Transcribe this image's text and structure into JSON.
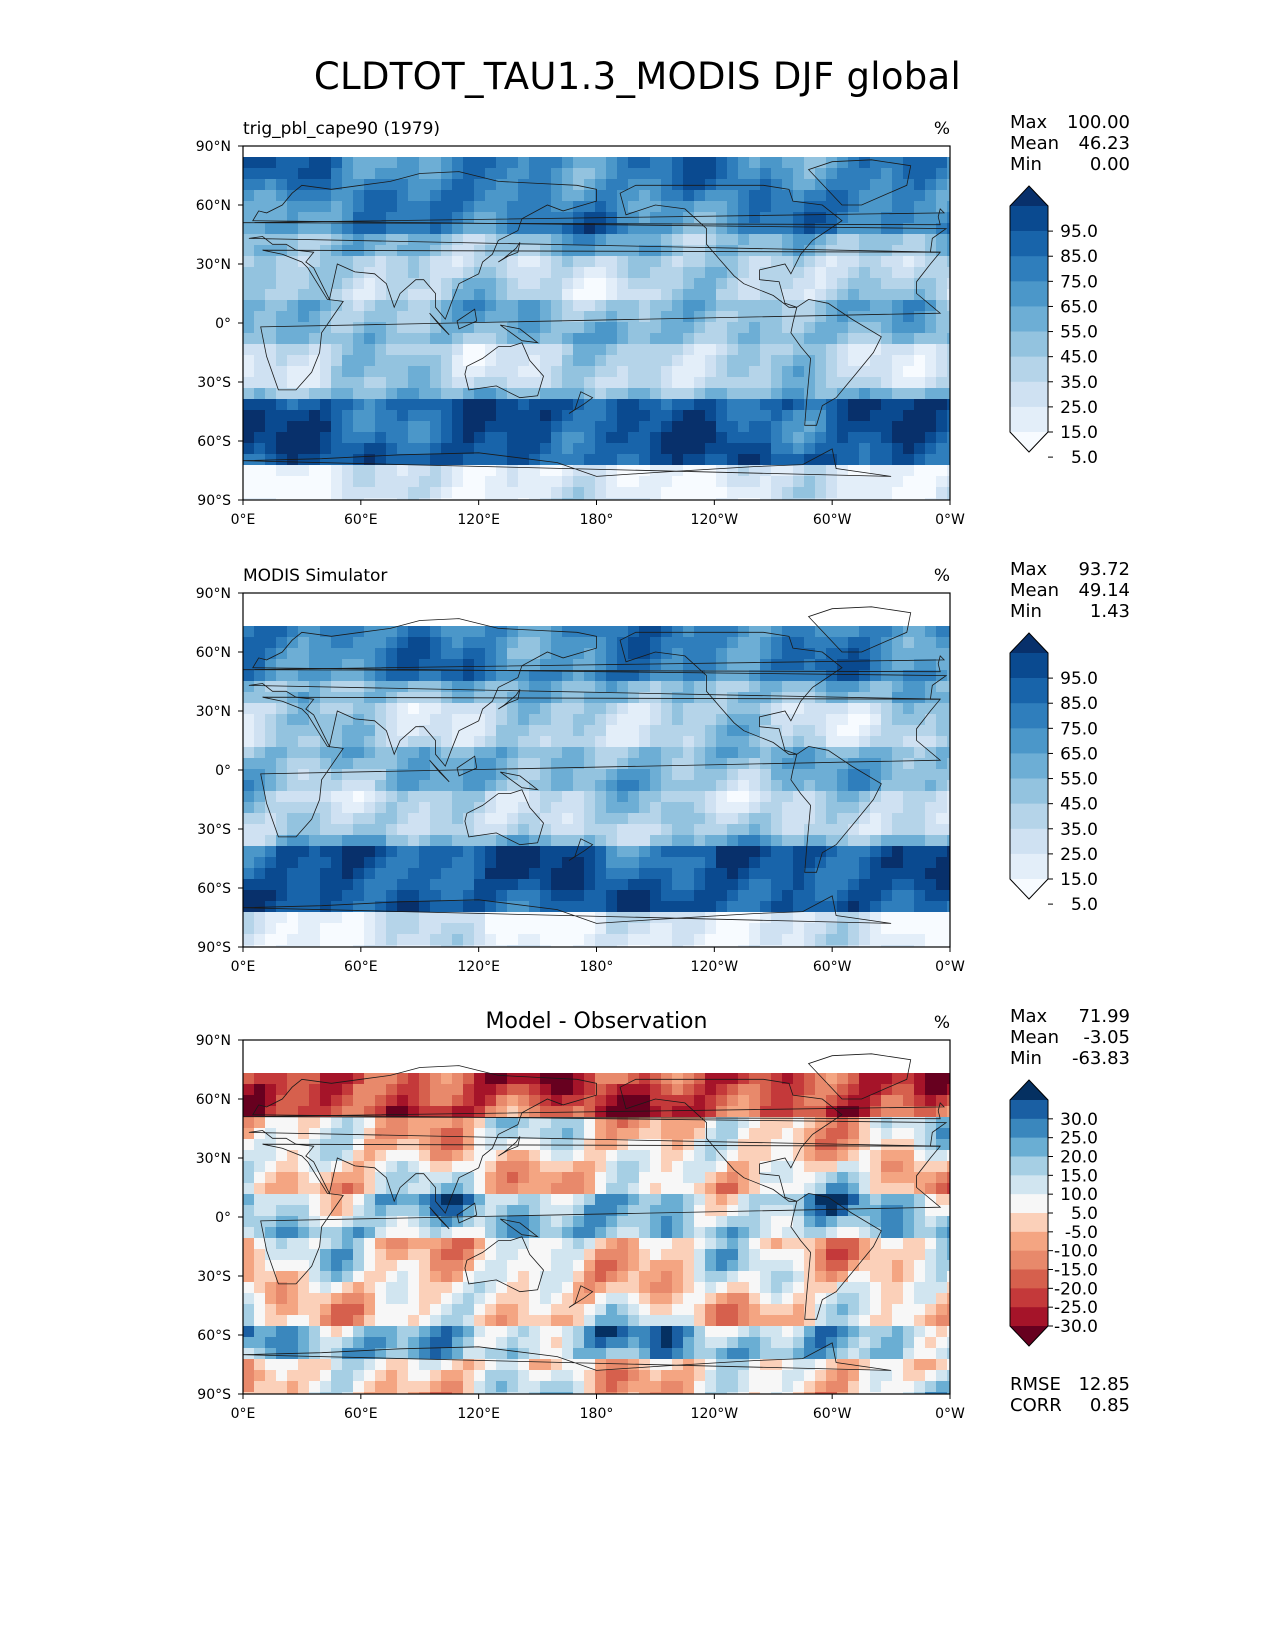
{
  "figure_title": "CLDTOT_TAU1.3_MODIS DJF global",
  "chart_data": [
    {
      "type": "heatmap",
      "map": "global-contour",
      "left_title": "trig_pbl_cape90 (1979)",
      "center_title": "",
      "units": "%",
      "stats": [
        {
          "label": "Max",
          "value": "100.00"
        },
        {
          "label": "Mean",
          "value": "46.23"
        },
        {
          "label": "Min",
          "value": "0.00"
        }
      ],
      "colorbar_ticks": [
        "95.0",
        "85.0",
        "75.0",
        "65.0",
        "55.0",
        "45.0",
        "35.0",
        "25.0",
        "15.0",
        "5.0"
      ],
      "colorbar_colors": [
        "#f7fbff",
        "#e3eef9",
        "#cfe1f2",
        "#b5d4e9",
        "#93c3df",
        "#6daed5",
        "#4b97c9",
        "#2f7ebc",
        "#1864aa",
        "#0a4a90",
        "#08306b"
      ],
      "lat_ticks": [
        "90°N",
        "60°N",
        "30°N",
        "0°",
        "30°S",
        "60°S",
        "90°S"
      ],
      "lon_ticks": [
        "0°E",
        "60°E",
        "120°E",
        "180°",
        "120°W",
        "60°W",
        "0°W"
      ]
    },
    {
      "type": "heatmap",
      "map": "global-contour",
      "left_title": "MODIS Simulator",
      "center_title": "",
      "units": "%",
      "stats": [
        {
          "label": "Max",
          "value": "93.72"
        },
        {
          "label": "Mean",
          "value": "49.14"
        },
        {
          "label": "Min",
          "value": "1.43"
        }
      ],
      "colorbar_ticks": [
        "95.0",
        "85.0",
        "75.0",
        "65.0",
        "55.0",
        "45.0",
        "35.0",
        "25.0",
        "15.0",
        "5.0"
      ],
      "colorbar_colors": [
        "#f7fbff",
        "#e3eef9",
        "#cfe1f2",
        "#b5d4e9",
        "#93c3df",
        "#6daed5",
        "#4b97c9",
        "#2f7ebc",
        "#1864aa",
        "#0a4a90",
        "#08306b"
      ],
      "lat_ticks": [
        "90°N",
        "60°N",
        "30°N",
        "0°",
        "30°S",
        "60°S",
        "90°S"
      ],
      "lon_ticks": [
        "0°E",
        "60°E",
        "120°E",
        "180°",
        "120°W",
        "60°W",
        "0°W"
      ]
    },
    {
      "type": "heatmap",
      "map": "global-contour-difference",
      "left_title": "",
      "center_title": "Model - Observation",
      "units": "%",
      "stats": [
        {
          "label": "Max",
          "value": "71.99"
        },
        {
          "label": "Mean",
          "value": "-3.05"
        },
        {
          "label": "Min",
          "value": "-63.83"
        }
      ],
      "colorbar_ticks": [
        "30.0",
        "25.0",
        "20.0",
        "15.0",
        "10.0",
        "5.0",
        "-5.0",
        "-10.0",
        "-15.0",
        "-20.0",
        "-25.0",
        "-30.0"
      ],
      "colorbar_colors": [
        "#67001f",
        "#a51429",
        "#c4393a",
        "#d6604d",
        "#e8896b",
        "#f4a582",
        "#fbd0b9",
        "#f7f7f7",
        "#d1e5f0",
        "#a6cfe4",
        "#6aaed3",
        "#3a87bd",
        "#1a5fa3",
        "#053061"
      ],
      "lat_ticks": [
        "90°N",
        "60°N",
        "30°N",
        "0°",
        "30°S",
        "60°S",
        "90°S"
      ],
      "lon_ticks": [
        "0°E",
        "60°E",
        "120°E",
        "180°",
        "120°W",
        "60°W",
        "0°W"
      ],
      "metrics": [
        {
          "label": "RMSE",
          "value": "12.85"
        },
        {
          "label": "CORR",
          "value": "0.85"
        }
      ]
    }
  ]
}
